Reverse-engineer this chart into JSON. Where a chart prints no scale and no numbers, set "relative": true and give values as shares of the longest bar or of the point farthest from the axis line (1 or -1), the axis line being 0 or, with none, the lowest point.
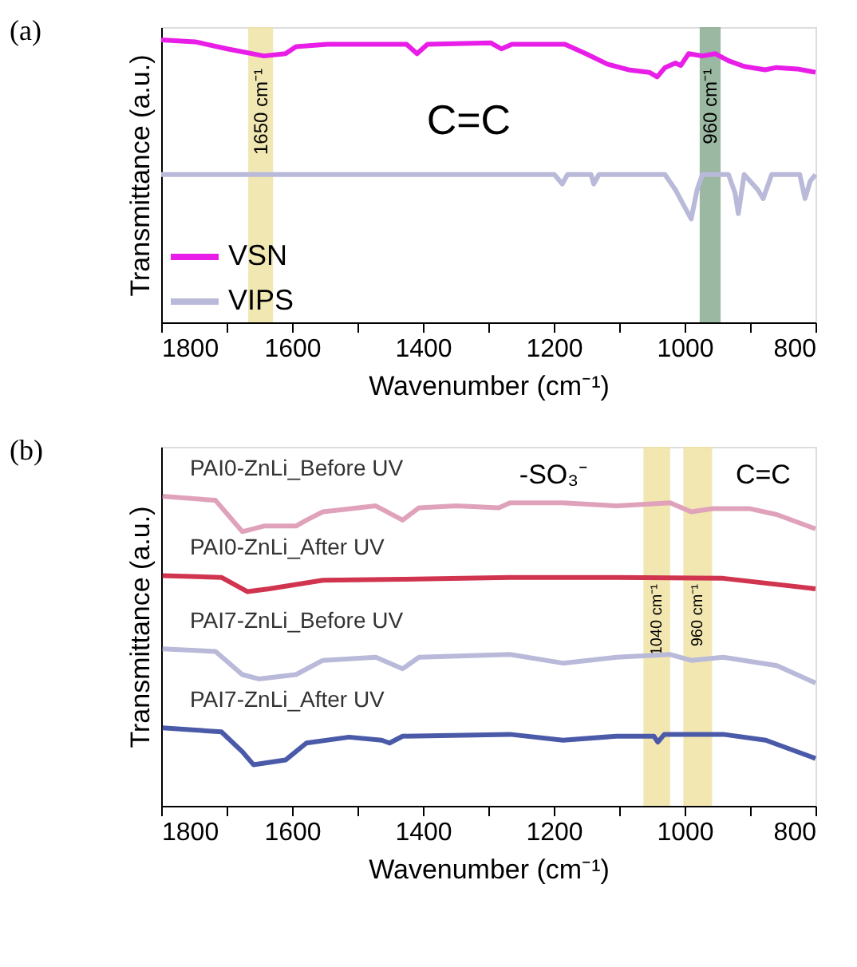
{
  "chart_data": [
    {
      "type": "line",
      "title": "(a)",
      "xlabel": "Wavenumber (cm⁻¹)",
      "ylabel": "Transmittance (a.u.)",
      "relative": true,
      "xlim": [
        1800,
        800
      ],
      "xticks": [
        1800,
        {
          "value": 1700,
          "label": null
        },
        1600,
        {
          "value": 1500,
          "label": null
        },
        1400,
        {
          "value": 1300,
          "label": null
        },
        1200,
        {
          "value": 1100,
          "label": null
        },
        1000,
        {
          "value": 900,
          "label": null
        },
        800
      ],
      "tick_labels": "x",
      "grid": false,
      "legend": "bottom left",
      "line_style": "solid",
      "marker": "none",
      "series": [
        {
          "name": "VSN",
          "color": "#e81ee8",
          "x": [
            1800,
            1748,
            1699,
            1643,
            1610,
            1594,
            1546,
            1425,
            1409,
            1393,
            1296,
            1280,
            1264,
            1183,
            1151,
            1118,
            1086,
            1054,
            1042,
            1030,
            1014,
            1006,
            994,
            973,
            953,
            933,
            909,
            877,
            860,
            828,
            800
          ],
          "values": [
            1.0,
            0.993,
            0.968,
            0.943,
            0.951,
            0.976,
            0.984,
            0.984,
            0.951,
            0.984,
            0.989,
            0.968,
            0.984,
            0.984,
            0.951,
            0.914,
            0.894,
            0.885,
            0.869,
            0.902,
            0.918,
            0.909,
            0.951,
            0.943,
            0.951,
            0.926,
            0.906,
            0.894,
            0.902,
            0.897,
            0.885
          ]
        },
        {
          "name": "VIPS",
          "color": "#b9b9d9",
          "x": [
            1800,
            1344,
            1199,
            1187,
            1179,
            1143,
            1139,
            1131,
            1030,
            1014,
            1002,
            990,
            981,
            973,
            933,
            923,
            918,
            909,
            888,
            880,
            867,
            824,
            816,
            808,
            800
          ],
          "values": [
            0.523,
            0.523,
            0.523,
            0.49,
            0.523,
            0.523,
            0.49,
            0.523,
            0.523,
            0.469,
            0.417,
            0.366,
            0.469,
            0.523,
            0.523,
            0.458,
            0.385,
            0.523,
            0.469,
            0.438,
            0.523,
            0.523,
            0.438,
            0.5,
            0.523
          ]
        }
      ],
      "bands": [
        {
          "axis": "x",
          "from": 1667,
          "to": 1629,
          "label": "1650 cm⁻¹",
          "color": "#efe3a6"
        },
        {
          "axis": "x",
          "from": 977,
          "to": 945,
          "label": "960 cm⁻¹",
          "color": "#8aab92"
        }
      ],
      "annotations": [
        "C=C"
      ]
    },
    {
      "type": "line",
      "title": "(b)",
      "xlabel": "Wavenumber (cm⁻¹)",
      "ylabel": "Transmittance (a.u.)",
      "relative": true,
      "xlim": [
        1800,
        800
      ],
      "xticks": [
        1800,
        {
          "value": 1700,
          "label": null
        },
        1600,
        {
          "value": 1500,
          "label": null
        },
        1400,
        {
          "value": 1300,
          "label": null
        },
        1200,
        {
          "value": 1100,
          "label": null
        },
        1000,
        {
          "value": 900,
          "label": null
        },
        800
      ],
      "tick_labels": "x",
      "grid": false,
      "line_style": "solid",
      "marker": "none",
      "series": [
        {
          "name": "PAI0-ZnLi_Before UV",
          "color": "#e0a2bb",
          "x": [
            1798,
            1717,
            1676,
            1643,
            1594,
            1578,
            1553,
            1472,
            1431,
            1406,
            1349,
            1284,
            1267,
            1186,
            1104,
            1022,
            990,
            957,
            900,
            859,
            800
          ],
          "values": [
            1.0,
            0.987,
            0.886,
            0.904,
            0.904,
            0.923,
            0.95,
            0.969,
            0.923,
            0.963,
            0.969,
            0.963,
            0.979,
            0.979,
            0.969,
            0.979,
            0.95,
            0.96,
            0.96,
            0.941,
            0.895
          ]
        },
        {
          "name": "PAI0-ZnLi_After UV",
          "color": "#d0344f",
          "x": [
            1798,
            1708,
            1668,
            1635,
            1553,
            1431,
            1267,
            1104,
            941,
            800
          ],
          "values": [
            0.744,
            0.738,
            0.692,
            0.701,
            0.729,
            0.732,
            0.738,
            0.738,
            0.735,
            0.701
          ]
        },
        {
          "name": "PAI7-ZnLi_Before UV",
          "color": "#b9b9d9",
          "x": [
            1798,
            1717,
            1676,
            1651,
            1594,
            1553,
            1472,
            1431,
            1406,
            1267,
            1186,
            1104,
            1022,
            990,
            941,
            859,
            800
          ],
          "values": [
            0.507,
            0.499,
            0.424,
            0.41,
            0.424,
            0.47,
            0.48,
            0.443,
            0.48,
            0.489,
            0.461,
            0.48,
            0.489,
            0.47,
            0.48,
            0.453,
            0.397
          ]
        },
        {
          "name": "PAI7-ZnLi_After UV",
          "color": "#4a5aa8",
          "x": [
            1798,
            1708,
            1676,
            1659,
            1610,
            1578,
            1513,
            1463,
            1451,
            1431,
            1267,
            1186,
            1104,
            1047,
            1041,
            1031,
            941,
            876,
            800
          ],
          "values": [
            0.252,
            0.239,
            0.175,
            0.133,
            0.148,
            0.203,
            0.222,
            0.212,
            0.203,
            0.225,
            0.231,
            0.212,
            0.225,
            0.225,
            0.206,
            0.231,
            0.231,
            0.212,
            0.153
          ]
        }
      ],
      "bands": [
        {
          "axis": "x",
          "from": 1063,
          "to": 1022,
          "label": "1040 cm⁻¹",
          "color": "#f1e3a3"
        },
        {
          "axis": "x",
          "from": 1002,
          "to": 958,
          "label": "960 cm⁻¹",
          "color": "#f1e3a3"
        }
      ],
      "annotations": [
        "-SO₃⁻",
        "C=C"
      ]
    }
  ]
}
